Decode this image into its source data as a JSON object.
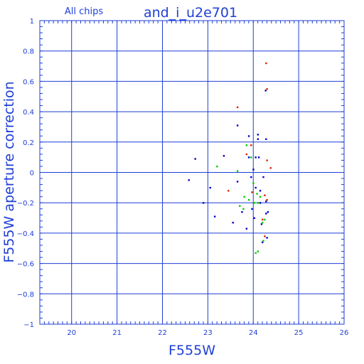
{
  "header": {
    "chips_label": "All chips",
    "dataset_title": "and_i_u2e701"
  },
  "chart_data": {
    "type": "scatter",
    "title": "and_i_u2e701",
    "subtitle": "All chips",
    "xlabel": "F555W",
    "ylabel": "F555W aperture correction",
    "xlim": [
      19.3,
      26
    ],
    "ylim": [
      -1,
      1
    ],
    "x_ticks": [
      20,
      21,
      22,
      23,
      24,
      25,
      26
    ],
    "y_ticks": [
      -1,
      -0.8,
      -0.6,
      -0.4,
      -0.2,
      0,
      0.2,
      0.4,
      0.6,
      0.8,
      1
    ],
    "x_tick_labels": [
      "20",
      "21",
      "22",
      "23",
      "24",
      "25",
      "26"
    ],
    "y_tick_labels": [
      "−1",
      "−0.8",
      "−0.6",
      "−0.4",
      "−0.2",
      "0",
      "0.2",
      "0.4",
      "0.6",
      "0.8",
      "1"
    ],
    "grid": true,
    "colors": {
      "axes": "#1f3fd6",
      "grid": "#1f3fd6",
      "labels": "#1f3fd6",
      "points_blue": "#0000cc",
      "points_green": "#00cc00",
      "points_red": "#dd2200"
    },
    "series": [
      {
        "color": "blue",
        "points": [
          [
            22.58,
            -0.05
          ],
          [
            22.72,
            0.09
          ],
          [
            22.9,
            -0.2
          ],
          [
            23.05,
            -0.1
          ],
          [
            23.15,
            -0.29
          ],
          [
            23.35,
            0.11
          ],
          [
            23.65,
            0.31
          ],
          [
            23.65,
            -0.06
          ],
          [
            23.75,
            -0.26
          ],
          [
            23.85,
            -0.37
          ],
          [
            23.9,
            0.24
          ],
          [
            23.9,
            0.1
          ],
          [
            23.95,
            -0.03
          ],
          [
            23.97,
            -0.24
          ],
          [
            24.0,
            0.02
          ],
          [
            24.05,
            0.1
          ],
          [
            24.05,
            -0.1
          ],
          [
            24.1,
            0.22
          ],
          [
            24.1,
            0.25
          ],
          [
            24.12,
            0.1
          ],
          [
            24.15,
            -0.12
          ],
          [
            24.15,
            -0.2
          ],
          [
            24.18,
            -0.34
          ],
          [
            24.2,
            -0.46
          ],
          [
            24.22,
            -0.03
          ],
          [
            24.27,
            0.54
          ],
          [
            24.28,
            0.22
          ],
          [
            24.28,
            -0.19
          ],
          [
            24.28,
            -0.27
          ],
          [
            24.3,
            -0.43
          ],
          [
            24.32,
            -0.26
          ],
          [
            23.55,
            -0.33
          ],
          [
            24.02,
            -0.3
          ]
        ]
      },
      {
        "color": "green",
        "points": [
          [
            23.2,
            0.04
          ],
          [
            23.65,
            0.01
          ],
          [
            23.7,
            -0.22
          ],
          [
            23.78,
            -0.24
          ],
          [
            23.8,
            -0.16
          ],
          [
            23.85,
            0.18
          ],
          [
            23.9,
            -0.18
          ],
          [
            23.95,
            0.1
          ],
          [
            24.0,
            -0.07
          ],
          [
            24.02,
            -0.2
          ],
          [
            24.05,
            -0.53
          ],
          [
            24.1,
            -0.52
          ],
          [
            24.15,
            -0.16
          ],
          [
            24.2,
            -0.33
          ],
          [
            24.22,
            -0.45
          ],
          [
            24.25,
            -0.31
          ],
          [
            24.1,
            -0.2
          ],
          [
            24.08,
            -0.14
          ]
        ]
      },
      {
        "color": "red",
        "points": [
          [
            23.65,
            0.43
          ],
          [
            23.45,
            -0.12
          ],
          [
            23.85,
            0.12
          ],
          [
            23.95,
            0.18
          ],
          [
            24.28,
            0.72
          ],
          [
            24.3,
            0.55
          ],
          [
            24.3,
            0.08
          ],
          [
            24.25,
            -0.15
          ],
          [
            24.3,
            -0.18
          ],
          [
            24.38,
            0.03
          ],
          [
            24.2,
            -0.31
          ],
          [
            24.25,
            -0.42
          ],
          [
            23.97,
            -0.13
          ]
        ]
      }
    ]
  }
}
